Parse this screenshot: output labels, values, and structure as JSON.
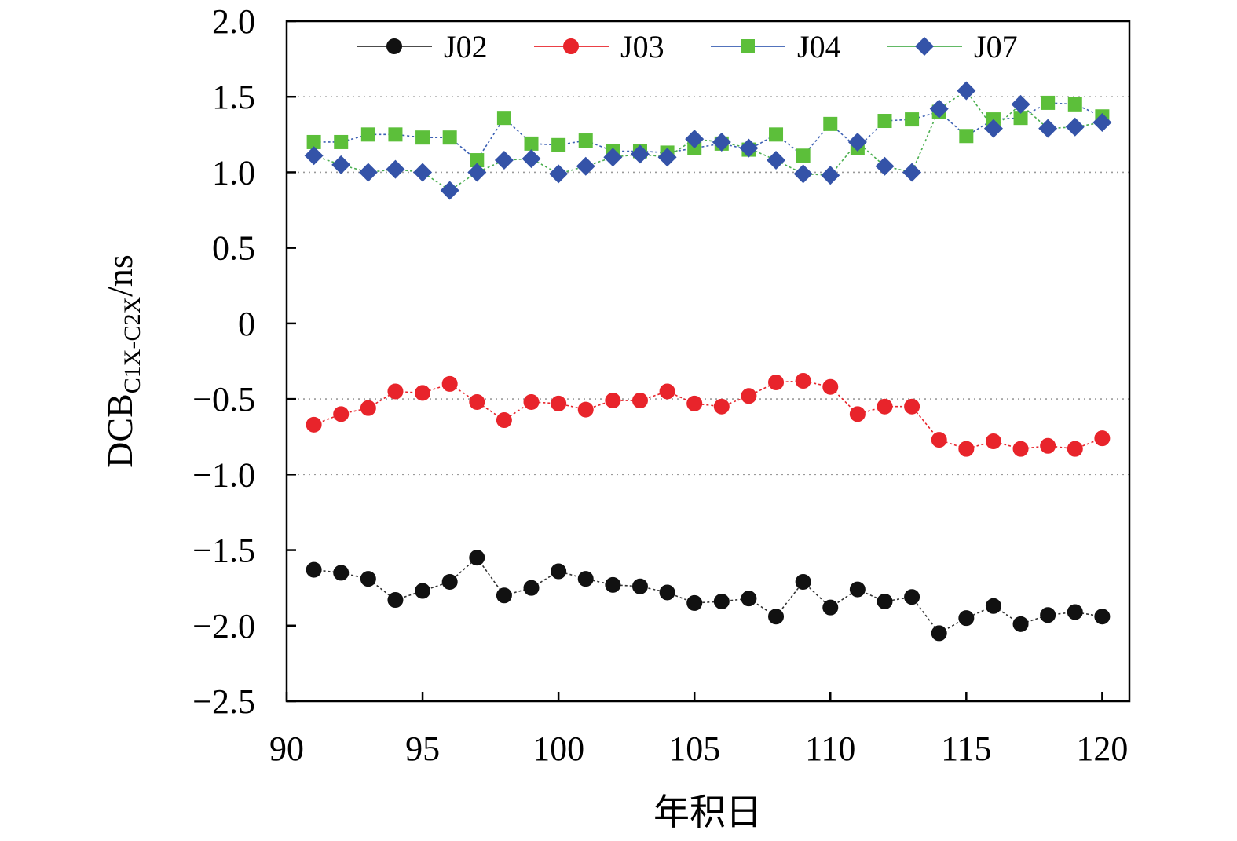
{
  "chart_data": {
    "type": "line",
    "xlabel": "年积日",
    "ylabel": {
      "base": "DCB",
      "subscript": "C1X-C2X",
      "suffix": "/ns"
    },
    "xlim": [
      90,
      121
    ],
    "ylim": [
      -2.5,
      2.0
    ],
    "xticks": [
      90,
      95,
      100,
      105,
      110,
      115,
      120
    ],
    "yticks": [
      2.0,
      1.5,
      1.0,
      0.5,
      0,
      -0.5,
      -1.0,
      -1.5,
      -2.0,
      -2.5
    ],
    "ytick_labels": [
      "2.0",
      "1.5",
      "1.0",
      "0.5",
      "0",
      "−0.5",
      "−1.0",
      "−1.5",
      "−2.0",
      "−2.5"
    ],
    "grid": {
      "horizontal_dotted_at": [
        1.5,
        1.0,
        -0.5,
        -1.0
      ]
    },
    "legend": {
      "placement": "top",
      "orientation": "horizontal"
    },
    "x": [
      91,
      92,
      93,
      94,
      95,
      96,
      97,
      98,
      99,
      100,
      101,
      102,
      103,
      104,
      105,
      106,
      107,
      108,
      109,
      110,
      111,
      112,
      113,
      114,
      115,
      116,
      117,
      118,
      119,
      120
    ],
    "series": [
      {
        "name": "J02",
        "marker": "circle",
        "color": "#111111",
        "line_color": "#333333",
        "values": [
          -1.63,
          -1.65,
          -1.69,
          -1.83,
          -1.77,
          -1.71,
          -1.55,
          -1.8,
          -1.75,
          -1.64,
          -1.69,
          -1.73,
          -1.74,
          -1.78,
          -1.85,
          -1.84,
          -1.82,
          -1.94,
          -1.71,
          -1.88,
          -1.76,
          -1.84,
          -1.81,
          -2.05,
          -1.95,
          -1.87,
          -1.99,
          -1.93,
          -1.91,
          -1.94
        ]
      },
      {
        "name": "J03",
        "marker": "circle",
        "color": "#e8242b",
        "line_color": "#e8242b",
        "values": [
          -0.67,
          -0.6,
          -0.56,
          -0.45,
          -0.46,
          -0.4,
          -0.52,
          -0.64,
          -0.52,
          -0.53,
          -0.57,
          -0.51,
          -0.51,
          -0.45,
          -0.53,
          -0.55,
          -0.48,
          -0.39,
          -0.38,
          -0.42,
          -0.6,
          -0.55,
          -0.55,
          -0.77,
          -0.83,
          -0.78,
          -0.83,
          -0.81,
          -0.83,
          -0.76
        ]
      },
      {
        "name": "J04",
        "marker": "square",
        "color": "#5cbf3a",
        "line_color": "#3a5fb3",
        "values": [
          1.2,
          1.2,
          1.25,
          1.25,
          1.23,
          1.23,
          1.08,
          1.36,
          1.19,
          1.18,
          1.21,
          1.14,
          1.14,
          1.13,
          1.16,
          1.19,
          1.15,
          1.25,
          1.11,
          1.32,
          1.16,
          1.34,
          1.35,
          1.4,
          1.24,
          1.35,
          1.36,
          1.46,
          1.45,
          1.37
        ]
      },
      {
        "name": "J07",
        "marker": "diamond",
        "color": "#3453a8",
        "line_color": "#4caf50",
        "values": [
          1.11,
          1.05,
          1.0,
          1.02,
          1.0,
          0.88,
          1.0,
          1.08,
          1.09,
          0.99,
          1.04,
          1.1,
          1.12,
          1.1,
          1.22,
          1.2,
          1.16,
          1.08,
          0.99,
          0.98,
          1.2,
          1.04,
          1.0,
          1.42,
          1.54,
          1.29,
          1.45,
          1.29,
          1.3,
          1.33
        ]
      }
    ]
  }
}
